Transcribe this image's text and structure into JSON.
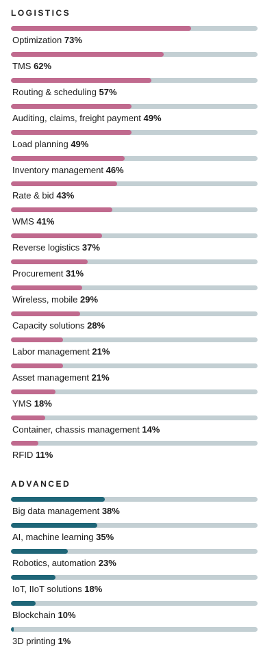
{
  "chart_data": [
    {
      "type": "bar",
      "title": "LOGISTICS",
      "value_unit": "%",
      "xlim": [
        0,
        100
      ],
      "color": "#c06a8e",
      "track_color": "#c3cfd3",
      "categories": [
        "Optimization",
        "TMS",
        "Routing & scheduling",
        "Auditing, claims, freight payment",
        "Load planning",
        "Inventory management",
        "Rate & bid",
        "WMS",
        "Reverse logistics",
        "Procurement",
        "Wireless, mobile",
        "Capacity solutions",
        "Labor management",
        "Asset management",
        "YMS",
        "Container, chassis management",
        "RFID"
      ],
      "values": [
        73,
        62,
        57,
        49,
        49,
        46,
        43,
        41,
        37,
        31,
        29,
        28,
        21,
        21,
        18,
        14,
        11
      ],
      "value_labels": [
        "73%",
        "62%",
        "57%",
        "49%",
        "49%",
        "46%",
        "43%",
        "41%",
        "37%",
        "31%",
        "29%",
        "28%",
        "21%",
        "21%",
        "18%",
        "14%",
        "11%"
      ]
    },
    {
      "type": "bar",
      "title": "ADVANCED",
      "value_unit": "%",
      "xlim": [
        0,
        100
      ],
      "color": "#1f6678",
      "track_color": "#c3cfd3",
      "categories": [
        "Big data management",
        "AI, machine learning",
        "Robotics, automation",
        "IoT, IIoT solutions",
        "Blockchain",
        "3D printing"
      ],
      "values": [
        38,
        35,
        23,
        18,
        10,
        1
      ],
      "value_labels": [
        "38%",
        "35%",
        "23%",
        "18%",
        "10%",
        "1%"
      ]
    }
  ]
}
